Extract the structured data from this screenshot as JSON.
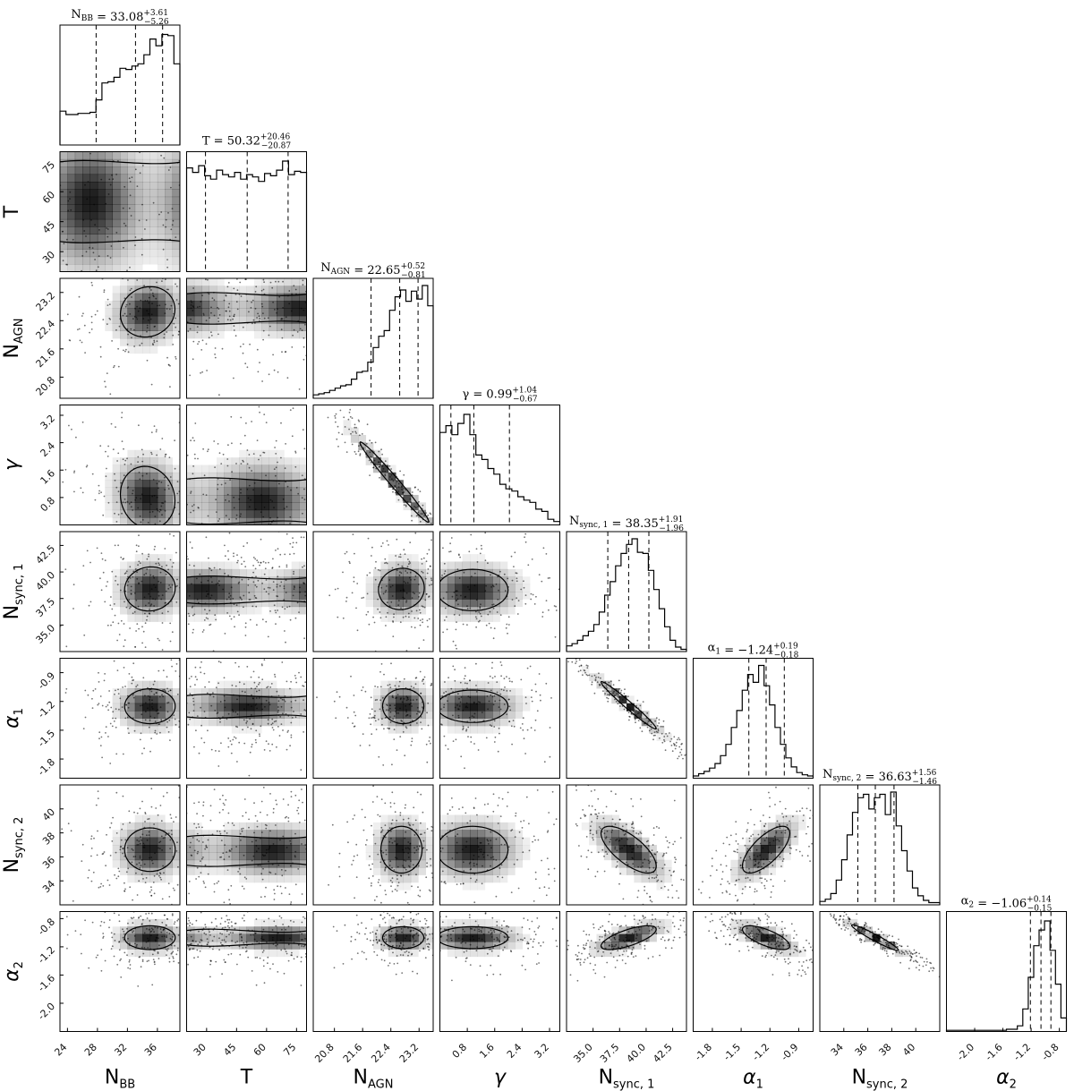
{
  "chart_data": {
    "type": "corner",
    "parameters": [
      {
        "label": "N",
        "label_sub": "BB",
        "label_italic": false,
        "range": [
          23,
          39
        ],
        "ticks": [
          24,
          28,
          32,
          36
        ]
      },
      {
        "label": "T",
        "label_sub": "",
        "label_italic": false,
        "range": [
          20,
          80
        ],
        "ticks": [
          30,
          45,
          60,
          75
        ]
      },
      {
        "label": "N",
        "label_sub": "AGN",
        "label_italic": false,
        "range": [
          20.2,
          23.6
        ],
        "ticks": [
          20.8,
          21.6,
          22.4,
          23.2
        ]
      },
      {
        "label": "γ",
        "label_sub": "",
        "label_italic": true,
        "range": [
          0,
          3.5
        ],
        "ticks": [
          0.8,
          1.6,
          2.4,
          3.2
        ]
      },
      {
        "label": "N",
        "label_sub": "sync, 1",
        "label_italic": false,
        "range": [
          32.5,
          43.8
        ],
        "ticks": [
          35.0,
          37.5,
          40.0,
          42.5
        ]
      },
      {
        "label": "α",
        "label_sub": "1",
        "label_italic": true,
        "range": [
          -2.0,
          -0.75
        ],
        "ticks": [
          -1.8,
          -1.5,
          -1.2,
          -0.9
        ]
      },
      {
        "label": "N",
        "label_sub": "sync, 2",
        "label_italic": false,
        "range": [
          32,
          42
        ],
        "ticks": [
          34,
          36,
          38,
          40
        ]
      },
      {
        "label": "α",
        "label_sub": "2",
        "label_italic": true,
        "range": [
          -2.4,
          -0.7
        ],
        "ticks": [
          -2.0,
          -1.6,
          -1.2,
          -0.8
        ]
      }
    ],
    "tick_labels": {
      "x": [
        [
          "24",
          "28",
          "32",
          "36"
        ],
        [
          "30",
          "45",
          "60",
          "75"
        ],
        [
          "20.8",
          "21.6",
          "22.4",
          "23.2"
        ],
        [
          "0.8",
          "1.6",
          "2.4",
          "3.2"
        ],
        [
          "35.0",
          "37.5",
          "40.0",
          "42.5"
        ],
        [
          "-1.8",
          "-1.5",
          "-1.2",
          "-0.9"
        ],
        [
          "34",
          "36",
          "38",
          "40"
        ],
        [
          "-2.0",
          "-1.6",
          "-1.2",
          "-0.8"
        ]
      ],
      "y": [
        null,
        [
          "30",
          "45",
          "60",
          "75"
        ],
        [
          "20.8",
          "21.6",
          "22.4",
          "23.2"
        ],
        [
          "0.8",
          "1.6",
          "2.4",
          "3.2"
        ],
        [
          "35.0",
          "37.5",
          "40.0",
          "42.5"
        ],
        [
          "-1.8",
          "-1.5",
          "-1.2",
          "-0.9"
        ],
        [
          "34",
          "36",
          "38",
          "40"
        ],
        [
          "-2.0",
          "-1.6",
          "-1.2",
          "-0.8"
        ]
      ]
    },
    "titles": [
      {
        "name": "N",
        "sub": "BB",
        "value": "33.08",
        "plus": "+3.61",
        "minus": "−5.26"
      },
      {
        "name": "T",
        "sub": "",
        "value": "50.32",
        "plus": "+20.46",
        "minus": "−20.87"
      },
      {
        "name": "N",
        "sub": "AGN",
        "value": "22.65",
        "plus": "+0.52",
        "minus": "−0.81"
      },
      {
        "name": "γ",
        "sub": "",
        "value": "0.99",
        "plus": "+1.04",
        "minus": "−0.67"
      },
      {
        "name": "N",
        "sub": "sync, 1",
        "value": "38.35",
        "plus": "+1.91",
        "minus": "−1.96"
      },
      {
        "name": "α",
        "sub": "1",
        "value": "−1.24",
        "plus": "+0.19",
        "minus": "−0.18"
      },
      {
        "name": "N",
        "sub": "sync, 2",
        "value": "36.63",
        "plus": "+1.56",
        "minus": "−1.46"
      },
      {
        "name": "α",
        "sub": "2",
        "value": "−1.06",
        "plus": "+0.14",
        "minus": "−0.15"
      }
    ],
    "quantiles": [
      [
        27.82,
        33.08,
        36.69
      ],
      [
        29.45,
        50.32,
        70.78
      ],
      [
        21.84,
        22.65,
        23.17
      ],
      [
        0.32,
        0.99,
        2.03
      ],
      [
        36.39,
        38.35,
        40.26
      ],
      [
        -1.42,
        -1.24,
        -1.05
      ],
      [
        35.17,
        36.63,
        38.19
      ],
      [
        -1.21,
        -1.06,
        -0.92
      ]
    ],
    "histograms": [
      [
        0.3,
        0.27,
        0.27,
        0.28,
        0.28,
        0.29,
        0.4,
        0.55,
        0.56,
        0.6,
        0.68,
        0.67,
        0.7,
        0.72,
        0.8,
        0.94,
        0.88,
        0.98,
        0.97,
        0.72
      ],
      [
        0.92,
        0.88,
        0.94,
        0.85,
        0.82,
        0.9,
        0.86,
        0.84,
        0.88,
        0.82,
        0.86,
        0.84,
        0.8,
        0.87,
        0.85,
        0.9,
        0.98,
        0.86,
        0.89,
        0.88
      ],
      [
        0.03,
        0.04,
        0.05,
        0.07,
        0.09,
        0.11,
        0.12,
        0.17,
        0.23,
        0.24,
        0.32,
        0.45,
        0.55,
        0.6,
        0.78,
        0.9,
        0.96,
        0.86,
        0.95,
        0.88,
        1.0,
        0.82
      ],
      [
        0.82,
        0.88,
        0.8,
        0.9,
        0.98,
        0.8,
        0.62,
        0.58,
        0.5,
        0.45,
        0.36,
        0.32,
        0.3,
        0.25,
        0.22,
        0.2,
        0.14,
        0.12,
        0.05,
        0.03
      ],
      [
        0.05,
        0.07,
        0.1,
        0.14,
        0.18,
        0.24,
        0.35,
        0.5,
        0.62,
        0.76,
        0.87,
        0.95,
        1.0,
        0.88,
        0.87,
        0.72,
        0.55,
        0.38,
        0.22,
        0.1,
        0.04,
        0.02
      ],
      [
        0.02,
        0.04,
        0.06,
        0.09,
        0.13,
        0.2,
        0.3,
        0.45,
        0.6,
        0.78,
        0.92,
        0.85,
        1.0,
        0.82,
        0.65,
        0.45,
        0.3,
        0.18,
        0.1,
        0.05,
        0.03,
        0.02
      ],
      [
        0.03,
        0.05,
        0.1,
        0.22,
        0.4,
        0.62,
        0.82,
        0.95,
        0.98,
        0.85,
        0.95,
        0.98,
        0.8,
        1.0,
        0.7,
        0.48,
        0.3,
        0.15,
        0.08,
        0.04,
        0.02,
        0.02
      ],
      [
        0.01,
        0.01,
        0.01,
        0.01,
        0.01,
        0.01,
        0.01,
        0.01,
        0.01,
        0.01,
        0.01,
        0.02,
        0.02,
        0.05,
        0.2,
        0.48,
        0.76,
        0.9,
        0.98,
        0.72,
        0.42,
        0.12
      ]
    ],
    "pairs": [
      {
        "i": 1,
        "j": 0,
        "type": "band",
        "x0": 35.6,
        "sx": 2.0,
        "y0": 55,
        "sy": 22,
        "r": 0.35
      },
      {
        "i": 2,
        "j": 0,
        "type": "blob",
        "x0": 34.7,
        "sx": 2.8,
        "y0": 22.65,
        "sy": 0.55,
        "r": 0.1
      },
      {
        "i": 2,
        "j": 1,
        "type": "band",
        "x0": 50,
        "sx": 22,
        "y0": 22.75,
        "sy": 0.45,
        "r": 0
      },
      {
        "i": 3,
        "j": 0,
        "type": "blob",
        "x0": 34.7,
        "sx": 2.8,
        "y0": 0.8,
        "sy": 0.7,
        "r": -0.1
      },
      {
        "i": 3,
        "j": 1,
        "type": "band",
        "x0": 50,
        "sx": 22,
        "y0": 0.7,
        "sy": 0.7,
        "r": 0
      },
      {
        "i": 3,
        "j": 2,
        "type": "line",
        "x0": 22.5,
        "sx": 0.75,
        "y0": 1.25,
        "sy": 0.9,
        "r": -0.99
      },
      {
        "i": 4,
        "j": 0,
        "type": "blob",
        "x0": 35.0,
        "sx": 2.6,
        "y0": 38.4,
        "sy": 1.6,
        "r": 0.05
      },
      {
        "i": 4,
        "j": 1,
        "type": "band",
        "x0": 50,
        "sx": 22,
        "y0": 38.3,
        "sy": 1.3,
        "r": -0.05
      },
      {
        "i": 4,
        "j": 2,
        "type": "blob",
        "x0": 22.7,
        "sx": 0.5,
        "y0": 38.4,
        "sy": 1.5,
        "r": 0.05
      },
      {
        "i": 4,
        "j": 3,
        "type": "blob",
        "x0": 0.95,
        "sx": 0.8,
        "y0": 38.3,
        "sy": 1.5,
        "r": 0
      },
      {
        "i": 5,
        "j": 0,
        "type": "blob",
        "x0": 35.0,
        "sx": 2.6,
        "y0": -1.25,
        "sy": 0.14,
        "r": 0
      },
      {
        "i": 5,
        "j": 1,
        "type": "band",
        "x0": 50,
        "sx": 22,
        "y0": -1.25,
        "sy": 0.12,
        "r": 0.15
      },
      {
        "i": 5,
        "j": 2,
        "type": "blob",
        "x0": 22.75,
        "sx": 0.45,
        "y0": -1.25,
        "sy": 0.14,
        "r": 0
      },
      {
        "i": 5,
        "j": 3,
        "type": "blob",
        "x0": 0.95,
        "sx": 0.8,
        "y0": -1.25,
        "sy": 0.13,
        "r": 0
      },
      {
        "i": 5,
        "j": 4,
        "type": "line",
        "x0": 38.35,
        "sx": 2.0,
        "y0": -1.24,
        "sy": 0.19,
        "r": -0.98
      },
      {
        "i": 6,
        "j": 0,
        "type": "blob",
        "x0": 35.0,
        "sx": 2.6,
        "y0": 36.6,
        "sy": 1.4,
        "r": 0
      },
      {
        "i": 6,
        "j": 1,
        "type": "band",
        "x0": 50,
        "sx": 22,
        "y0": 36.5,
        "sy": 1.3,
        "r": 0.25
      },
      {
        "i": 6,
        "j": 2,
        "type": "blob",
        "x0": 22.7,
        "sx": 0.45,
        "y0": 36.6,
        "sy": 1.5,
        "r": 0
      },
      {
        "i": 6,
        "j": 3,
        "type": "blob",
        "x0": 0.95,
        "sx": 0.8,
        "y0": 36.6,
        "sy": 1.5,
        "r": 0
      },
      {
        "i": 6,
        "j": 4,
        "type": "blob",
        "x0": 38.35,
        "sx": 2.0,
        "y0": 36.6,
        "sy": 1.5,
        "r": -0.7
      },
      {
        "i": 6,
        "j": 5,
        "type": "blob",
        "x0": -1.24,
        "sx": 0.19,
        "y0": 36.6,
        "sy": 1.5,
        "r": 0.7
      },
      {
        "i": 7,
        "j": 0,
        "type": "blob",
        "x0": 35.0,
        "sx": 2.6,
        "y0": -1.07,
        "sy": 0.13,
        "r": 0
      },
      {
        "i": 7,
        "j": 1,
        "type": "band",
        "x0": 50,
        "sx": 22,
        "y0": -1.07,
        "sy": 0.11,
        "r": -0.2
      },
      {
        "i": 7,
        "j": 2,
        "type": "blob",
        "x0": 22.75,
        "sx": 0.45,
        "y0": -1.07,
        "sy": 0.12,
        "r": 0
      },
      {
        "i": 7,
        "j": 3,
        "type": "blob",
        "x0": 0.95,
        "sx": 0.8,
        "y0": -1.07,
        "sy": 0.12,
        "r": 0
      },
      {
        "i": 7,
        "j": 4,
        "type": "blob",
        "x0": 38.35,
        "sx": 2.0,
        "y0": -1.07,
        "sy": 0.13,
        "r": 0.7
      },
      {
        "i": 7,
        "j": 5,
        "type": "blob",
        "x0": -1.24,
        "sx": 0.19,
        "y0": -1.07,
        "sy": 0.13,
        "r": -0.7
      },
      {
        "i": 7,
        "j": 6,
        "type": "line",
        "x0": 36.6,
        "sx": 1.5,
        "y0": -1.07,
        "sy": 0.14,
        "r": -0.96
      }
    ],
    "colors": {
      "density": "#000000",
      "scatter": "#000000",
      "frame": "#000000",
      "background": "#ffffff"
    },
    "grid": false
  }
}
